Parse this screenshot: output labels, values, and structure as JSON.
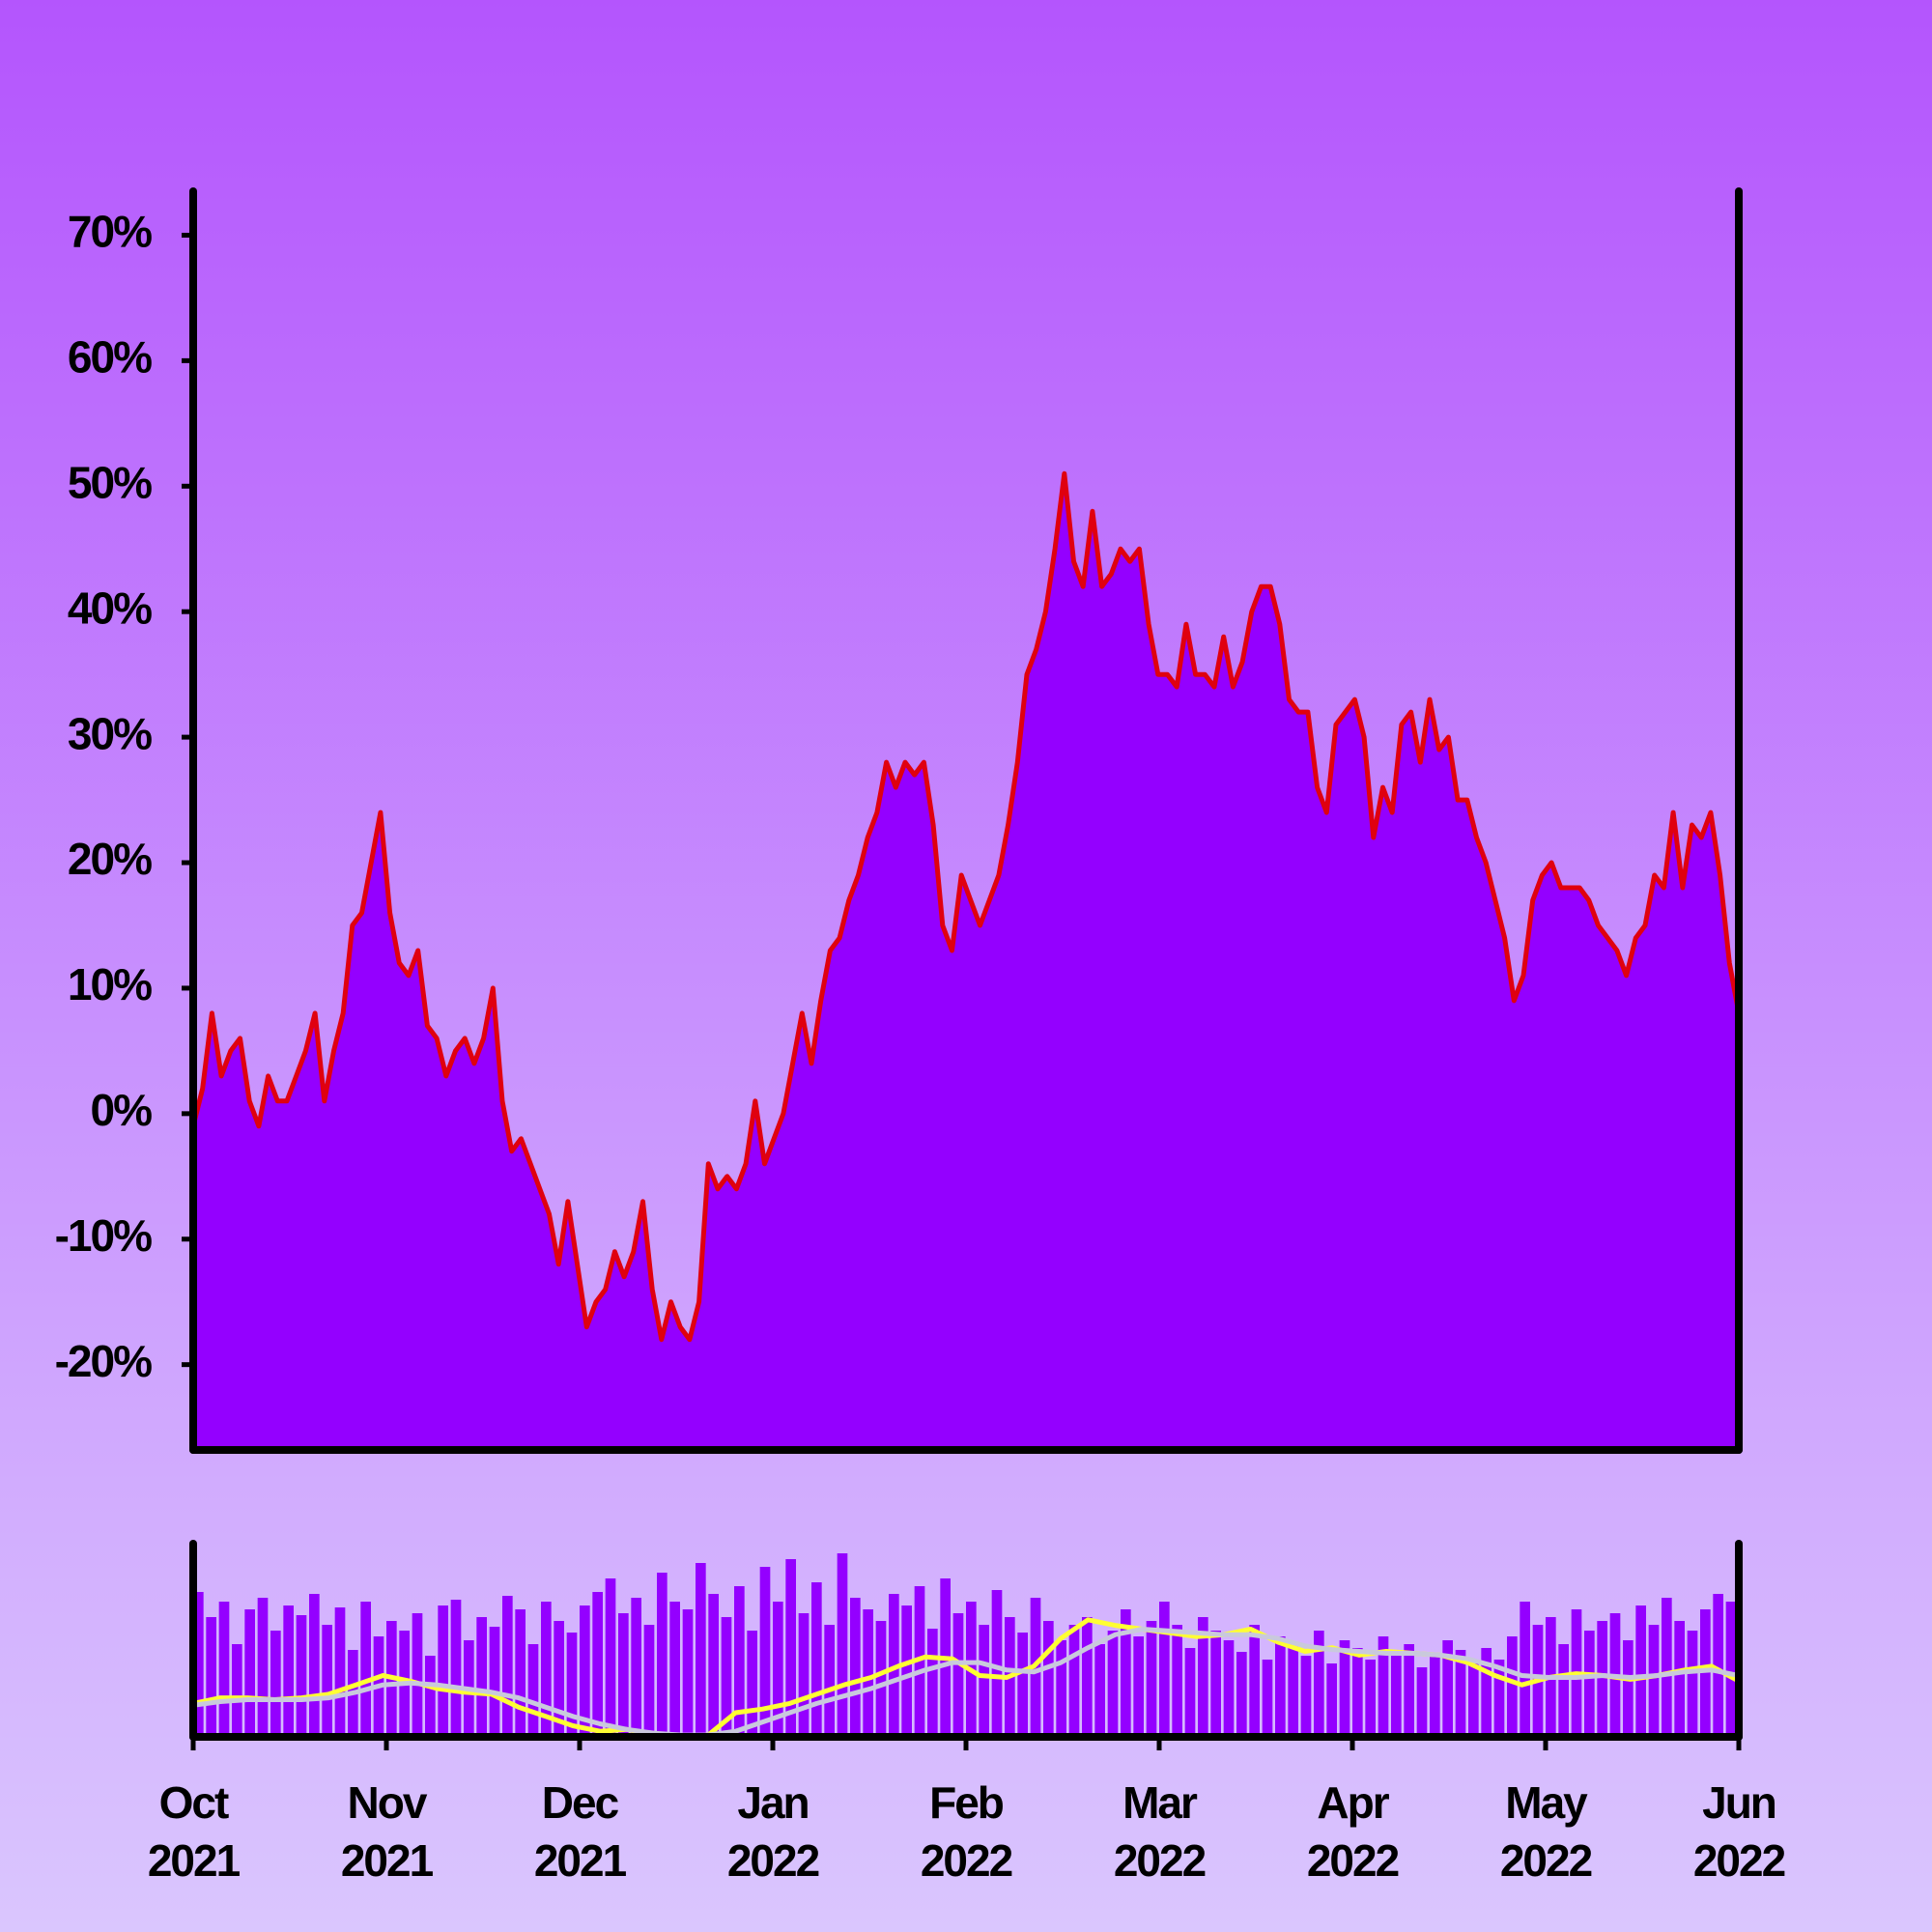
{
  "chart_data": [
    {
      "type": "area",
      "color": "#9400ff",
      "line_color": "#e0000f",
      "xlim": [
        "2021-10",
        "2022-06"
      ],
      "ylim": [
        -26.8,
        73.5
      ],
      "yticks": [
        {
          "value": -20,
          "label": "-20%"
        },
        {
          "value": -10,
          "label": "-10%"
        },
        {
          "value": 0,
          "label": "0%"
        },
        {
          "value": 10,
          "label": "10%"
        },
        {
          "value": 20,
          "label": "20%"
        },
        {
          "value": 30,
          "label": "30%"
        },
        {
          "value": 40,
          "label": "40%"
        },
        {
          "value": 50,
          "label": "50%"
        },
        {
          "value": 60,
          "label": "60%"
        },
        {
          "value": 70,
          "label": "70%"
        }
      ],
      "values": [
        -1,
        2,
        8,
        3,
        5,
        6,
        1,
        -1,
        3,
        1,
        1,
        3,
        5,
        8,
        1,
        5,
        8,
        15,
        16,
        20,
        24,
        16,
        12,
        11,
        13,
        7,
        6,
        3,
        5,
        6,
        4,
        6,
        10,
        1,
        -3,
        -2,
        -4,
        -6,
        -8,
        -12,
        -7,
        -12,
        -17,
        -15,
        -14,
        -11,
        -13,
        -11,
        -7,
        -14,
        -18,
        -15,
        -17,
        -18,
        -15,
        -4,
        -6,
        -5,
        -6,
        -4,
        1,
        -4,
        -2,
        0,
        4,
        8,
        4,
        9,
        13,
        14,
        17,
        19,
        22,
        24,
        28,
        26,
        28,
        27,
        28,
        23,
        15,
        13,
        19,
        17,
        15,
        17,
        19,
        23,
        28,
        35,
        37,
        40,
        45,
        51,
        44,
        42,
        48,
        42,
        43,
        45,
        44,
        45,
        39,
        35,
        35,
        34,
        39,
        35,
        35,
        34,
        38,
        34,
        36,
        40,
        42,
        42,
        39,
        33,
        32,
        32,
        26,
        24,
        31,
        32,
        33,
        30,
        22,
        26,
        24,
        31,
        32,
        28,
        33,
        29,
        30,
        25,
        25,
        22,
        20,
        17,
        14,
        9,
        11,
        17,
        19,
        20,
        18,
        18,
        18,
        17,
        15,
        14,
        13,
        11,
        14,
        15,
        19,
        18,
        24,
        18,
        23,
        22,
        24,
        19,
        12,
        8
      ]
    },
    {
      "type": "bar",
      "xlim": [
        "2021-10",
        "2022-06"
      ],
      "xticks": [
        {
          "value": "2021-10",
          "label": "Oct\n2021"
        },
        {
          "value": "2021-11",
          "label": "Nov\n2021"
        },
        {
          "value": "2021-12",
          "label": "Dec\n2021"
        },
        {
          "value": "2022-01",
          "label": "Jan\n2022"
        },
        {
          "value": "2022-02",
          "label": "Feb\n2022"
        },
        {
          "value": "2022-03",
          "label": "Mar\n2022"
        },
        {
          "value": "2022-04",
          "label": "Apr\n2022"
        },
        {
          "value": "2022-05",
          "label": "May\n2022"
        },
        {
          "value": "2022-06",
          "label": "Jun\n2022"
        }
      ],
      "ylim": [
        0,
        100
      ],
      "y2lim": [
        -18,
        86
      ],
      "series": [
        {
          "color": "#9400ff",
          "values": [
            75,
            62,
            70,
            48,
            66,
            72,
            55,
            68,
            63,
            74,
            58,
            67,
            45,
            70,
            52,
            60,
            55,
            64,
            42,
            68,
            71,
            50,
            62,
            57,
            73,
            66,
            48,
            70,
            60,
            54,
            68,
            75,
            82,
            64,
            72,
            58,
            85,
            70,
            66,
            90,
            74,
            62,
            78,
            55,
            88,
            70,
            92,
            64,
            80,
            58,
            95,
            72,
            66,
            60,
            74,
            68,
            78,
            56,
            82,
            64,
            70,
            58,
            76,
            62,
            54,
            72,
            60,
            50,
            58,
            62,
            48,
            55,
            66,
            52,
            60,
            70,
            58,
            46,
            62,
            55,
            50,
            44,
            58,
            40,
            52,
            48,
            42,
            55,
            38,
            50,
            46,
            40,
            52,
            44,
            48,
            36,
            42,
            50,
            45,
            38,
            46,
            40,
            52,
            70,
            58,
            62,
            48,
            66,
            55,
            60,
            64,
            50,
            68,
            58,
            72,
            60,
            55,
            66,
            74,
            70
          ]
        },
        {
          "color": "#ffff33",
          "axis": "y2",
          "values": [
            0,
            3,
            3,
            2,
            3,
            5,
            10,
            15,
            12,
            8,
            6,
            5,
            -2,
            -7,
            -12,
            -15,
            -14,
            -17,
            -18,
            -17,
            -5,
            -3,
            0,
            5,
            10,
            14,
            20,
            25,
            24,
            15,
            14,
            20,
            35,
            45,
            42,
            40,
            38,
            36,
            37,
            40,
            33,
            28,
            30,
            26,
            28,
            27,
            26,
            22,
            15,
            10,
            14,
            16,
            15,
            13,
            15,
            18,
            20,
            12
          ]
        },
        {
          "color": "#c9c9dc",
          "axis": "y2",
          "values": [
            -1,
            1,
            2,
            2,
            2,
            3,
            6,
            10,
            11,
            10,
            8,
            6,
            3,
            -2,
            -7,
            -11,
            -14,
            -16,
            -17,
            -17,
            -15,
            -10,
            -5,
            0,
            4,
            8,
            13,
            18,
            22,
            22,
            18,
            17,
            22,
            30,
            37,
            40,
            39,
            38,
            37,
            37,
            35,
            31,
            29,
            28,
            27,
            27,
            26,
            24,
            20,
            15,
            14,
            14,
            15,
            14,
            15,
            17,
            18,
            15
          ]
        }
      ]
    }
  ]
}
